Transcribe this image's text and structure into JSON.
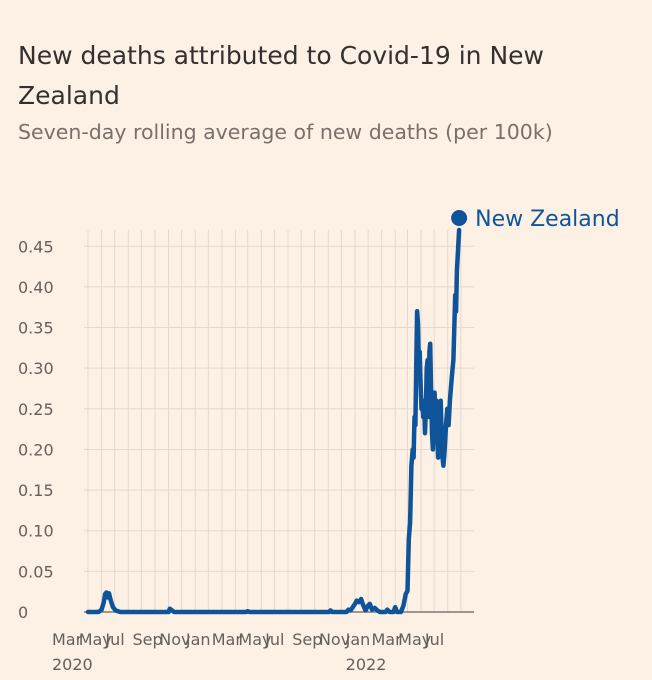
{
  "chart_data": {
    "type": "line",
    "title": "New deaths attributed to Covid-19 in New Zealand",
    "subtitle": "Seven-day rolling average of new deaths (per 100k)",
    "xlabel": "",
    "ylabel": "",
    "grid": true,
    "legend": "right end of line",
    "ylim": [
      0,
      0.47
    ],
    "yticks": [
      "0",
      "0.05",
      "0.10",
      "0.15",
      "0.20",
      "0.25",
      "0.30",
      "0.35",
      "0.40",
      "0.45"
    ],
    "xlim": [
      "2020-03-01",
      "2022-07-31"
    ],
    "xticks": [
      {
        "date": "2020-03-01",
        "label": "Mar",
        "year": "2020"
      },
      {
        "date": "2020-05-01",
        "label": "May",
        "year": ""
      },
      {
        "date": "2020-07-01",
        "label": "Jul",
        "year": ""
      },
      {
        "date": "2020-09-01",
        "label": "Sep",
        "year": ""
      },
      {
        "date": "2020-11-01",
        "label": "Nov",
        "year": ""
      },
      {
        "date": "2021-01-01",
        "label": "Jan",
        "year": ""
      },
      {
        "date": "2021-03-01",
        "label": "Mar",
        "year": ""
      },
      {
        "date": "2021-05-01",
        "label": "May",
        "year": ""
      },
      {
        "date": "2021-07-01",
        "label": "Jul",
        "year": ""
      },
      {
        "date": "2021-09-01",
        "label": "Sep",
        "year": ""
      },
      {
        "date": "2021-11-01",
        "label": "Nov",
        "year": ""
      },
      {
        "date": "2022-01-01",
        "label": "Jan",
        "year": "2022"
      },
      {
        "date": "2022-03-01",
        "label": "Mar",
        "year": ""
      },
      {
        "date": "2022-05-01",
        "label": "May",
        "year": ""
      },
      {
        "date": "2022-07-01",
        "label": "Jul",
        "year": ""
      }
    ],
    "series": [
      {
        "name": "New Zealand",
        "color": "#0f5499",
        "points": [
          [
            "2020-03-01",
            0
          ],
          [
            "2020-03-25",
            0
          ],
          [
            "2020-04-01",
            0.003
          ],
          [
            "2020-04-06",
            0.012
          ],
          [
            "2020-04-09",
            0.022
          ],
          [
            "2020-04-12",
            0.024
          ],
          [
            "2020-04-15",
            0.018
          ],
          [
            "2020-04-18",
            0.023
          ],
          [
            "2020-04-22",
            0.014
          ],
          [
            "2020-04-27",
            0.006
          ],
          [
            "2020-05-03",
            0.002
          ],
          [
            "2020-05-08",
            0.001
          ],
          [
            "2020-05-14",
            0
          ],
          [
            "2020-09-01",
            0
          ],
          [
            "2020-09-04",
            0.004
          ],
          [
            "2020-09-09",
            0.002
          ],
          [
            "2020-09-14",
            0
          ],
          [
            "2021-02-25",
            0
          ],
          [
            "2021-03-01",
            0.001
          ],
          [
            "2021-03-05",
            0
          ],
          [
            "2021-09-03",
            0
          ],
          [
            "2021-09-06",
            0.002
          ],
          [
            "2021-09-10",
            0
          ],
          [
            "2021-10-13",
            0
          ],
          [
            "2021-10-17",
            0.003
          ],
          [
            "2021-10-22",
            0.002
          ],
          [
            "2021-11-01",
            0.01
          ],
          [
            "2021-11-05",
            0.014
          ],
          [
            "2021-11-10",
            0.012
          ],
          [
            "2021-11-15",
            0.016
          ],
          [
            "2021-11-20",
            0.008
          ],
          [
            "2021-11-25",
            0.002
          ],
          [
            "2021-12-01",
            0.008
          ],
          [
            "2021-12-05",
            0.01
          ],
          [
            "2021-12-10",
            0.003
          ],
          [
            "2021-12-16",
            0.005
          ],
          [
            "2021-12-22",
            0.002
          ],
          [
            "2021-12-28",
            0
          ],
          [
            "2022-01-10",
            0
          ],
          [
            "2022-01-14",
            0.003
          ],
          [
            "2022-01-19",
            0
          ],
          [
            "2022-01-28",
            0
          ],
          [
            "2022-02-01",
            0.006
          ],
          [
            "2022-02-05",
            0
          ],
          [
            "2022-02-14",
            0
          ],
          [
            "2022-02-20",
            0.008
          ],
          [
            "2022-02-25",
            0.022
          ],
          [
            "2022-03-01",
            0.026
          ],
          [
            "2022-03-04",
            0.09
          ],
          [
            "2022-03-07",
            0.11
          ],
          [
            "2022-03-10",
            0.18
          ],
          [
            "2022-03-13",
            0.2
          ],
          [
            "2022-03-15",
            0.19
          ],
          [
            "2022-03-17",
            0.24
          ],
          [
            "2022-03-19",
            0.23
          ],
          [
            "2022-03-21",
            0.3
          ],
          [
            "2022-03-23",
            0.37
          ],
          [
            "2022-03-25",
            0.355
          ],
          [
            "2022-03-27",
            0.3
          ],
          [
            "2022-03-29",
            0.32
          ],
          [
            "2022-03-31",
            0.28
          ],
          [
            "2022-04-02",
            0.25
          ],
          [
            "2022-04-04",
            0.26
          ],
          [
            "2022-04-06",
            0.24
          ],
          [
            "2022-04-08",
            0.26
          ],
          [
            "2022-04-10",
            0.22
          ],
          [
            "2022-04-12",
            0.25
          ],
          [
            "2022-04-14",
            0.3
          ],
          [
            "2022-04-16",
            0.31
          ],
          [
            "2022-04-18",
            0.24
          ],
          [
            "2022-04-20",
            0.32
          ],
          [
            "2022-04-22",
            0.33
          ],
          [
            "2022-04-24",
            0.27
          ],
          [
            "2022-04-26",
            0.22
          ],
          [
            "2022-04-28",
            0.2
          ],
          [
            "2022-04-30",
            0.24
          ],
          [
            "2022-05-02",
            0.27
          ],
          [
            "2022-05-04",
            0.24
          ],
          [
            "2022-05-06",
            0.26
          ],
          [
            "2022-05-08",
            0.22
          ],
          [
            "2022-05-10",
            0.19
          ],
          [
            "2022-05-12",
            0.2
          ],
          [
            "2022-05-14",
            0.25
          ],
          [
            "2022-05-16",
            0.26
          ],
          [
            "2022-05-18",
            0.22
          ],
          [
            "2022-05-20",
            0.19
          ],
          [
            "2022-05-22",
            0.18
          ],
          [
            "2022-05-25",
            0.2
          ],
          [
            "2022-05-28",
            0.23
          ],
          [
            "2022-05-31",
            0.25
          ],
          [
            "2022-06-03",
            0.23
          ],
          [
            "2022-06-06",
            0.26
          ],
          [
            "2022-06-09",
            0.28
          ],
          [
            "2022-06-12",
            0.3
          ],
          [
            "2022-06-14",
            0.31
          ],
          [
            "2022-06-16",
            0.35
          ],
          [
            "2022-06-18",
            0.39
          ],
          [
            "2022-06-20",
            0.37
          ],
          [
            "2022-06-22",
            0.42
          ],
          [
            "2022-06-24",
            0.44
          ],
          [
            "2022-06-27",
            0.47
          ]
        ]
      }
    ]
  }
}
